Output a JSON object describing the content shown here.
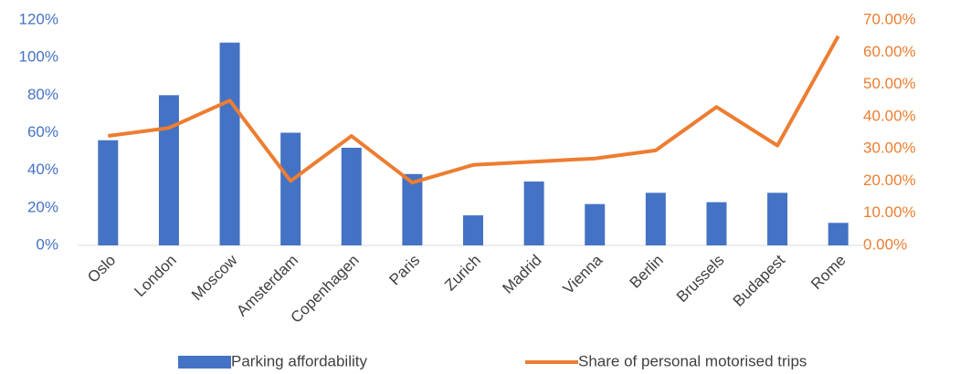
{
  "chart_data": {
    "type": "bar_line",
    "categories": [
      "Oslo",
      "London",
      "Moscow",
      "Amsterdam",
      "Copenhagen",
      "Paris",
      "Zurich",
      "Madrid",
      "Vienna",
      "Berlin",
      "Brussels",
      "Budapest",
      "Rome"
    ],
    "series": [
      {
        "name": "Parking affordability",
        "type": "bar",
        "color": "#4472c4",
        "axis": "y",
        "values": [
          56,
          80,
          108,
          60,
          52,
          38,
          16,
          34,
          22,
          28,
          23,
          28,
          12
        ]
      },
      {
        "name": "Share of personal motorised trips",
        "type": "line",
        "color": "#ed7d31",
        "axis": "y2",
        "values": [
          34,
          36.5,
          45,
          20,
          34,
          19.5,
          25,
          26,
          27,
          29.5,
          43,
          31,
          65
        ]
      }
    ],
    "ylim": [
      0,
      120
    ],
    "yticks": [
      {
        "value": 0,
        "label": "0%"
      },
      {
        "value": 20,
        "label": "20%"
      },
      {
        "value": 40,
        "label": "40%"
      },
      {
        "value": 60,
        "label": "60%"
      },
      {
        "value": 80,
        "label": "80%"
      },
      {
        "value": 100,
        "label": "100%"
      },
      {
        "value": 120,
        "label": "120%"
      }
    ],
    "y2lim": [
      0,
      70
    ],
    "y2ticks": [
      {
        "value": 0,
        "label": "0.00%"
      },
      {
        "value": 10,
        "label": "10.00%"
      },
      {
        "value": 20,
        "label": "20.00%"
      },
      {
        "value": 30,
        "label": "30.00%"
      },
      {
        "value": 40,
        "label": "40.00%"
      },
      {
        "value": 50,
        "label": "50.00%"
      },
      {
        "value": 60,
        "label": "60.00%"
      },
      {
        "value": 70,
        "label": "70.00%"
      }
    ],
    "ytick_color": "#4472c4",
    "y2tick_color": "#ed7d31",
    "legend": "bottom"
  }
}
